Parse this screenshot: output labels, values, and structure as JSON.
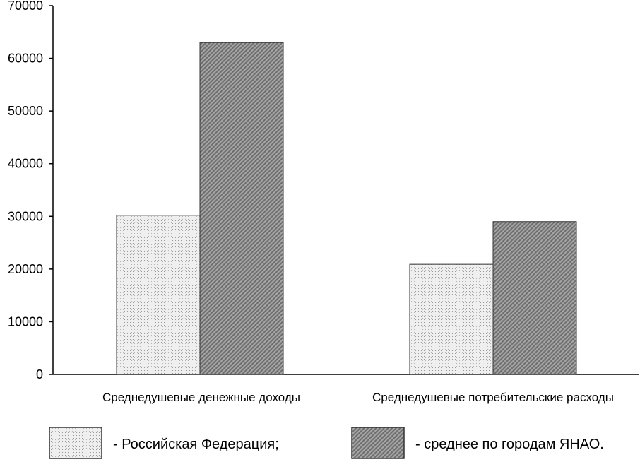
{
  "chart_data": {
    "type": "bar",
    "categories": [
      "Среднедушевые денежные доходы",
      "Среднедушевые потребительские расходы"
    ],
    "series": [
      {
        "name": "- Российская Федерация;",
        "values": [
          30200,
          20900
        ],
        "pattern": "light-dots"
      },
      {
        "name": "- среднее по городам ЯНАО.",
        "values": [
          63000,
          29000
        ],
        "pattern": "dark-hatch"
      }
    ],
    "yticks": [
      "0",
      "10000",
      "20000",
      "30000",
      "40000",
      "50000",
      "60000",
      "70000"
    ],
    "ylim": [
      0,
      70000
    ],
    "grid": false,
    "legend_position": "bottom",
    "colors": {
      "axis": "#000000",
      "bar_border": "#333333",
      "light_fill": "#e6e6e6",
      "dark_fill": "#8c8c8c"
    }
  }
}
